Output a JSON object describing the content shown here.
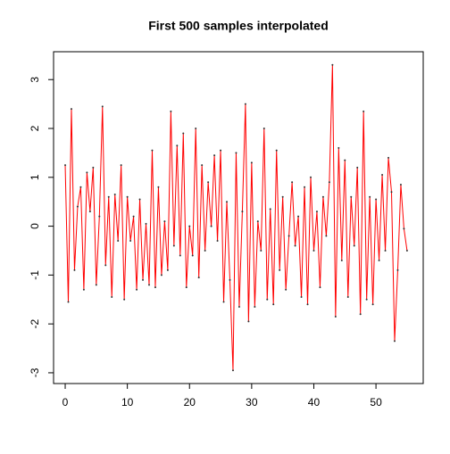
{
  "chart_data": {
    "type": "line",
    "title": "First 500 samples interpolated",
    "x": [
      0,
      0.5,
      1,
      1.5,
      2,
      2.5,
      3,
      3.5,
      4,
      4.5,
      5,
      5.5,
      6,
      6.5,
      7,
      7.5,
      8,
      8.5,
      9,
      9.5,
      10,
      10.5,
      11,
      11.5,
      12,
      12.5,
      13,
      13.5,
      14,
      14.5,
      15,
      15.5,
      16,
      16.5,
      17,
      17.5,
      18,
      18.5,
      19,
      19.5,
      20,
      20.5,
      21,
      21.5,
      22,
      22.5,
      23,
      23.5,
      24,
      24.5,
      25,
      25.5,
      26,
      26.5,
      27,
      27.5,
      28,
      28.5,
      29,
      29.5,
      30,
      30.5,
      31,
      31.5,
      32,
      32.5,
      33,
      33.5,
      34,
      34.5,
      35,
      35.5,
      36,
      36.5,
      37,
      37.5,
      38,
      38.5,
      39,
      39.5,
      40,
      40.5,
      41,
      41.5,
      42,
      42.5,
      43,
      43.5,
      44,
      44.5,
      45,
      45.5,
      46,
      46.5,
      47,
      47.5,
      48,
      48.5,
      49,
      49.5,
      50,
      50.5,
      51,
      51.5,
      52,
      52.5,
      53,
      53.5,
      54,
      54.5,
      55
    ],
    "series": [
      {
        "color": "#ff0000",
        "values": [
          1.25,
          -1.55,
          2.4,
          -0.9,
          0.4,
          0.8,
          -1.3,
          1.1,
          0.3,
          1.2,
          -1.2,
          0.2,
          2.45,
          -0.8,
          0.6,
          -1.45,
          0.65,
          -0.3,
          1.25,
          -1.5,
          0.6,
          -0.3,
          0.2,
          -1.3,
          0.55,
          -1.1,
          0.05,
          -1.2,
          1.55,
          -1.25,
          0.8,
          -1.0,
          0.1,
          -0.9,
          2.35,
          -0.4,
          1.65,
          -0.6,
          1.9,
          -1.25,
          0.0,
          -0.6,
          2.0,
          -1.05,
          1.25,
          -0.5,
          0.9,
          0.0,
          1.45,
          -0.3,
          1.55,
          -1.55,
          0.5,
          -1.1,
          -2.95,
          1.5,
          -1.65,
          0.3,
          2.5,
          -1.95,
          1.3,
          -1.65,
          0.1,
          -0.5,
          2.0,
          -1.5,
          0.35,
          -1.6,
          1.55,
          -0.9,
          0.6,
          -1.3,
          -0.2,
          0.9,
          -0.4,
          0.2,
          -1.45,
          0.8,
          -1.6,
          1.0,
          -0.5,
          0.3,
          -1.25,
          0.6,
          -0.2,
          0.9,
          3.3,
          -1.85,
          1.6,
          -0.7,
          1.35,
          -1.45,
          0.6,
          -0.4,
          1.2,
          -1.8,
          2.35,
          -1.5,
          0.6,
          -1.6,
          0.55,
          -0.7,
          1.05,
          -0.5,
          1.4,
          0.7,
          -2.35,
          -0.9,
          0.85,
          -0.05,
          -0.5
        ]
      }
    ],
    "xlim": [
      -1.87,
      57.6
    ],
    "ylim": [
      -3.22,
      3.57
    ],
    "xticks": [
      0,
      10,
      20,
      30,
      40,
      50
    ],
    "yticks": [
      -3,
      -2,
      -1,
      0,
      1,
      2,
      3
    ]
  }
}
